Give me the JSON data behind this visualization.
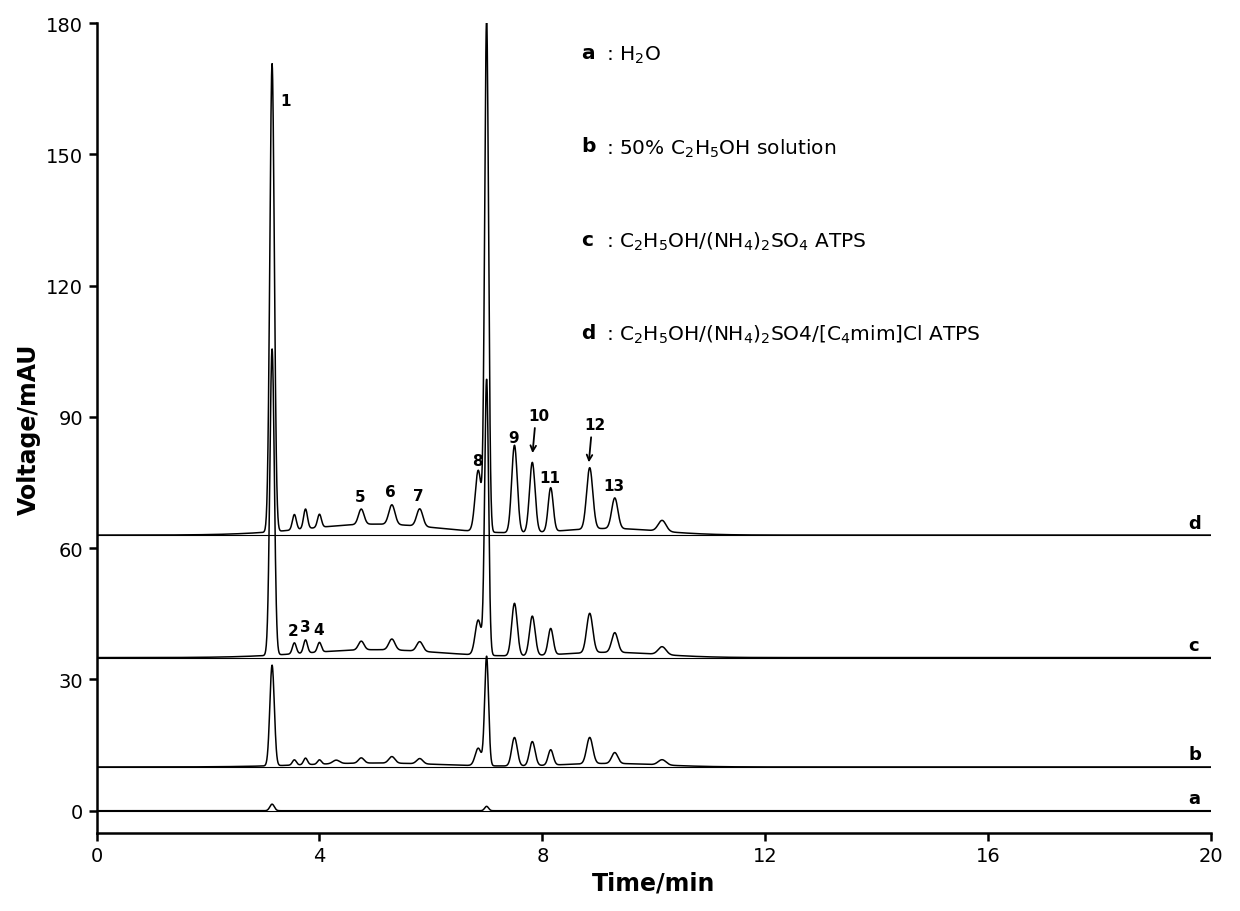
{
  "xlabel": "Time/min",
  "ylabel": "Voltage/mAU",
  "xlim": [
    0,
    20
  ],
  "ylim": [
    -5,
    180
  ],
  "yticks": [
    0,
    30,
    60,
    90,
    120,
    150,
    180
  ],
  "xticks": [
    0,
    4,
    8,
    12,
    16,
    20
  ],
  "offsets": {
    "a": 0,
    "b": 10,
    "c": 35,
    "d": 63
  },
  "line_color": "#000000",
  "bg_color": "#ffffff"
}
